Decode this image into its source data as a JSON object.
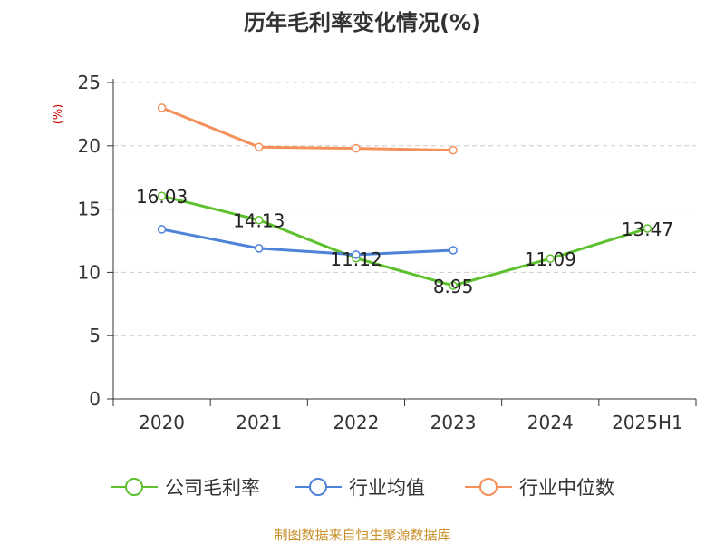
{
  "chart_data": {
    "type": "line",
    "title": "历年毛利率变化情况(%)",
    "ylabel": "(%)",
    "xlabel": "",
    "categories": [
      "2020",
      "2021",
      "2022",
      "2023",
      "2024",
      "2025H1"
    ],
    "ylim": [
      0,
      25
    ],
    "yticks": [
      0,
      5,
      10,
      15,
      20,
      25
    ],
    "grid": "horizontal dashed",
    "legend_position": "bottom",
    "series": [
      {
        "name": "公司毛利率",
        "color": "#5dc12e",
        "values": [
          16.03,
          14.13,
          11.12,
          8.95,
          11.09,
          13.47
        ],
        "data_labels": [
          "16.03",
          "14.13",
          "11.12",
          "8.95",
          "11.09",
          "13.47"
        ]
      },
      {
        "name": "行业均值",
        "color": "#4f82d9",
        "values": [
          13.4,
          11.9,
          11.4,
          11.75,
          null,
          null
        ]
      },
      {
        "name": "行业中位数",
        "color": "#f4905a",
        "values": [
          23.0,
          19.9,
          19.8,
          19.65,
          null,
          null
        ]
      }
    ],
    "source": "制图数据来自恒生聚源数据库"
  }
}
